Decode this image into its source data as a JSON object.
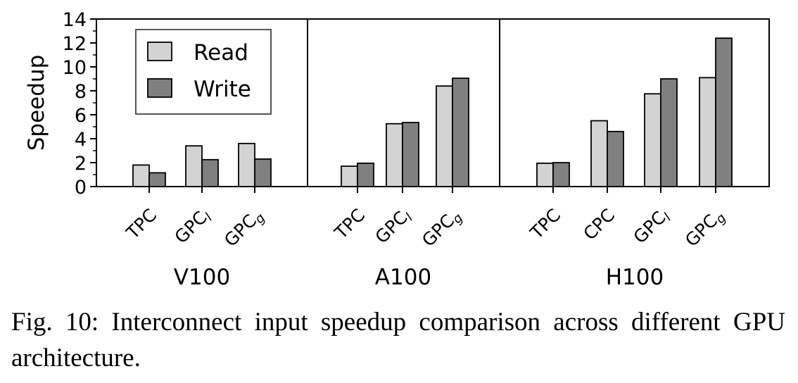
{
  "chart_data": {
    "type": "bar",
    "ylabel": "Speedup",
    "ylim": [
      0,
      14
    ],
    "yticks": [
      0,
      2,
      4,
      6,
      8,
      10,
      12,
      14
    ],
    "legend": {
      "placement": "top-left",
      "entries": [
        "Read",
        "Write"
      ]
    },
    "grid": false,
    "colors": {
      "Read": "#d3d3d3",
      "Write": "#808080"
    },
    "groups": [
      {
        "name": "V100",
        "categories": [
          {
            "label": "TPC",
            "sub": ""
          },
          {
            "label": "GPC",
            "sub": "l"
          },
          {
            "label": "GPC",
            "sub": "g"
          }
        ],
        "series": [
          {
            "name": "Read",
            "values": [
              1.8,
              3.4,
              3.6
            ]
          },
          {
            "name": "Write",
            "values": [
              1.15,
              2.25,
              2.3
            ]
          }
        ]
      },
      {
        "name": "A100",
        "categories": [
          {
            "label": "TPC",
            "sub": ""
          },
          {
            "label": "GPC",
            "sub": "l"
          },
          {
            "label": "GPC",
            "sub": "g"
          }
        ],
        "series": [
          {
            "name": "Read",
            "values": [
              1.7,
              5.25,
              8.4
            ]
          },
          {
            "name": "Write",
            "values": [
              1.95,
              5.35,
              9.05
            ]
          }
        ]
      },
      {
        "name": "H100",
        "categories": [
          {
            "label": "TPC",
            "sub": ""
          },
          {
            "label": "CPC",
            "sub": ""
          },
          {
            "label": "GPC",
            "sub": "l"
          },
          {
            "label": "GPC",
            "sub": "g"
          }
        ],
        "series": [
          {
            "name": "Read",
            "values": [
              1.95,
              5.5,
              7.75,
              9.1
            ]
          },
          {
            "name": "Write",
            "values": [
              2.0,
              4.6,
              9.0,
              12.4
            ]
          }
        ]
      }
    ]
  },
  "caption": "Fig. 10: Interconnect input speedup comparison across different GPU architecture."
}
